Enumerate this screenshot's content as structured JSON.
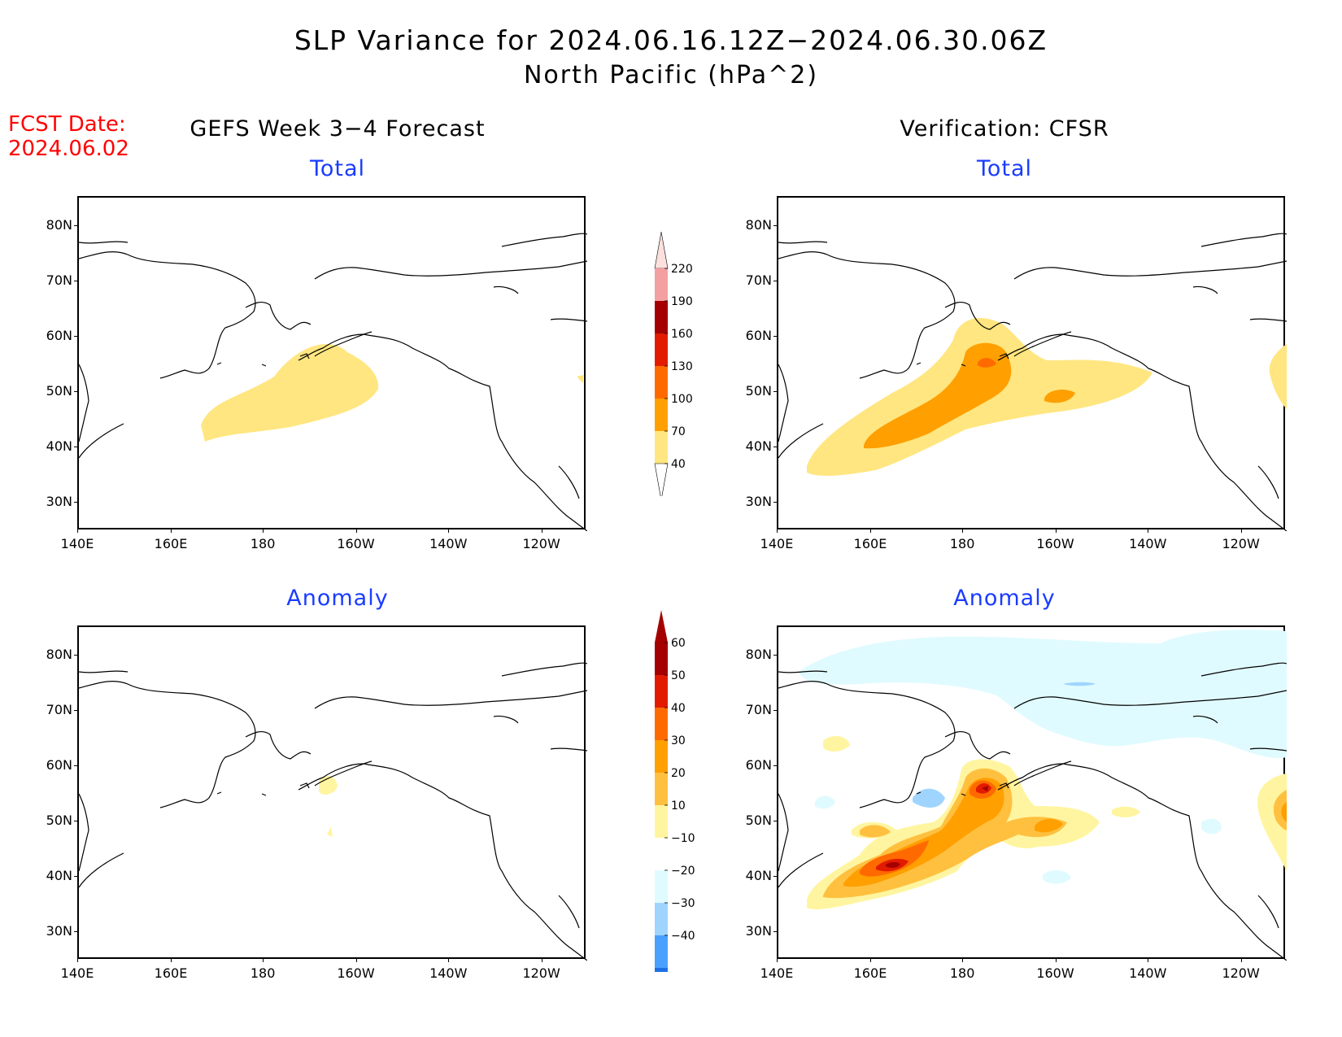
{
  "title": {
    "line1": "SLP Variance for 2024.06.16.12Z−2024.06.30.06Z",
    "line2": "North Pacific (hPa^2)"
  },
  "fcst_date": {
    "label": "FCST Date:",
    "value": "2024.06.02"
  },
  "columns": {
    "left": "GEFS Week 3−4 Forecast",
    "right": "Verification: CFSR"
  },
  "panels": {
    "total_label": "Total",
    "anomaly_label": "Anomaly"
  },
  "axes": {
    "lat_labels": [
      "80N",
      "70N",
      "60N",
      "50N",
      "40N",
      "30N"
    ],
    "lon_labels": [
      "140E",
      "160E",
      "180",
      "160W",
      "140W",
      "120W"
    ]
  },
  "colorbar_total": {
    "labels": [
      "220",
      "190",
      "160",
      "130",
      "100",
      "70",
      "40"
    ],
    "colors": [
      "#fde0dd",
      "#f4a0a0",
      "#a50000",
      "#e21b00",
      "#ff6a00",
      "#ff9f00",
      "#ffe680"
    ]
  },
  "colorbar_anomaly": {
    "labels": [
      "60",
      "50",
      "40",
      "30",
      "20",
      "10",
      "−10",
      "−20",
      "−30",
      "−40"
    ],
    "colors": [
      "#a50000",
      "#e21b00",
      "#ff6a00",
      "#ff9f00",
      "#ffc040",
      "#fff5a0",
      "#ffffff",
      "#e0fbff",
      "#9fd4ff",
      "#4aa0ff",
      "#1e6fe6",
      "#1050c0"
    ]
  },
  "fill_colors": {
    "c40": "#ffe680",
    "c70": "#ff9f00",
    "c100": "#ff6a00",
    "a10": "#fff5a0",
    "a20": "#ffc040",
    "a30": "#ff9f00",
    "a40": "#ff6a00",
    "a50": "#e21b00",
    "a60": "#a50000",
    "n10": "#e0fbff",
    "n20": "#9fd4ff"
  }
}
